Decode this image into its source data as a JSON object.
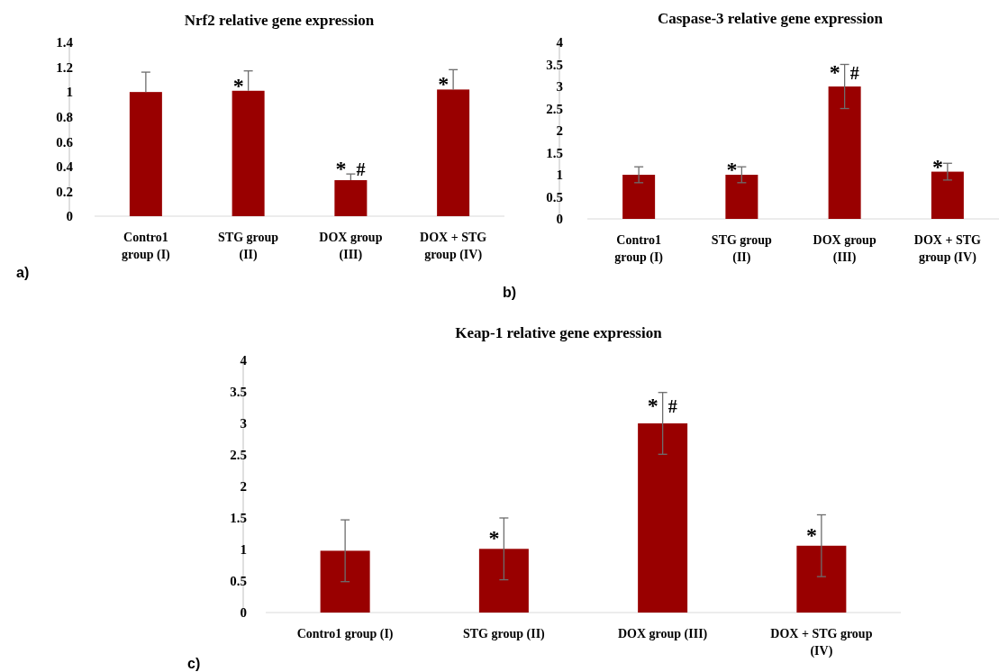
{
  "chart_data": [
    {
      "type": "bar",
      "title": "Nrf2 relative gene expression",
      "categories": [
        "Contro1 group (I)",
        "STG group (II)",
        "DOX group (III)",
        "DOX + STG group (IV)"
      ],
      "values": [
        1.0,
        1.01,
        0.29,
        1.02
      ],
      "color": "#990000",
      "errors": [
        [
          1.0,
          1.16
        ],
        [
          1.01,
          1.17
        ],
        [
          0.29,
          0.34
        ],
        [
          1.02,
          1.18
        ]
      ],
      "ylim": [
        0,
        1.4
      ],
      "yticks": [
        0,
        0.2,
        0.4,
        0.6,
        0.8,
        1,
        1.2,
        1.4
      ],
      "annotations": [
        {
          "text": "*",
          "x": "STG group (II)",
          "y": 1.01
        },
        {
          "text": "* #",
          "x": "DOX group (III)",
          "y": 0.34
        },
        {
          "text": "*",
          "x": "DOX + STG group (IV)",
          "y": 1.02
        },
        "a)"
      ]
    },
    {
      "type": "bar",
      "title": "Caspase-3 relative gene expression",
      "categories": [
        "Contro1 group (I)",
        "STG group (II)",
        "DOX group (III)",
        "DOX + STG group (IV)"
      ],
      "values": [
        1.0,
        1.0,
        3.0,
        1.07
      ],
      "color": "#990000",
      "errors": [
        0.18,
        0.18,
        0.5,
        0.19
      ],
      "ylim": [
        0,
        4
      ],
      "yticks": [
        0,
        0.5,
        1,
        1.5,
        2,
        2.5,
        3,
        3.5,
        4
      ],
      "annotations": [
        {
          "text": "*",
          "x": "STG group (II)",
          "y": 1.0
        },
        {
          "text": "* #",
          "x": "DOX group (III)",
          "y": 3.2
        },
        {
          "text": "*",
          "x": "DOX + STG group (IV)",
          "y": 1.07
        },
        "b)"
      ]
    },
    {
      "type": "bar",
      "title": "Keap-1 relative gene expression",
      "categories": [
        "Contro1 group (I)",
        "STG group (II)",
        "DOX group (III)",
        "DOX + STG group (IV)"
      ],
      "values": [
        0.98,
        1.01,
        3.0,
        1.06
      ],
      "color": "#990000",
      "errors": [
        0.49,
        0.49,
        0.49,
        0.49
      ],
      "ylim": [
        0,
        4
      ],
      "yticks": [
        0,
        0.5,
        1,
        1.5,
        2,
        2.5,
        3,
        3.5,
        4
      ],
      "annotations": [
        {
          "text": "*",
          "x": "STG group (II)",
          "y": 1.1
        },
        {
          "text": "* #",
          "x": "DOX group (III)",
          "y": 3.2
        },
        {
          "text": "*",
          "x": "DOX + STG group (IV)",
          "y": 1.15
        },
        "c)"
      ]
    }
  ]
}
